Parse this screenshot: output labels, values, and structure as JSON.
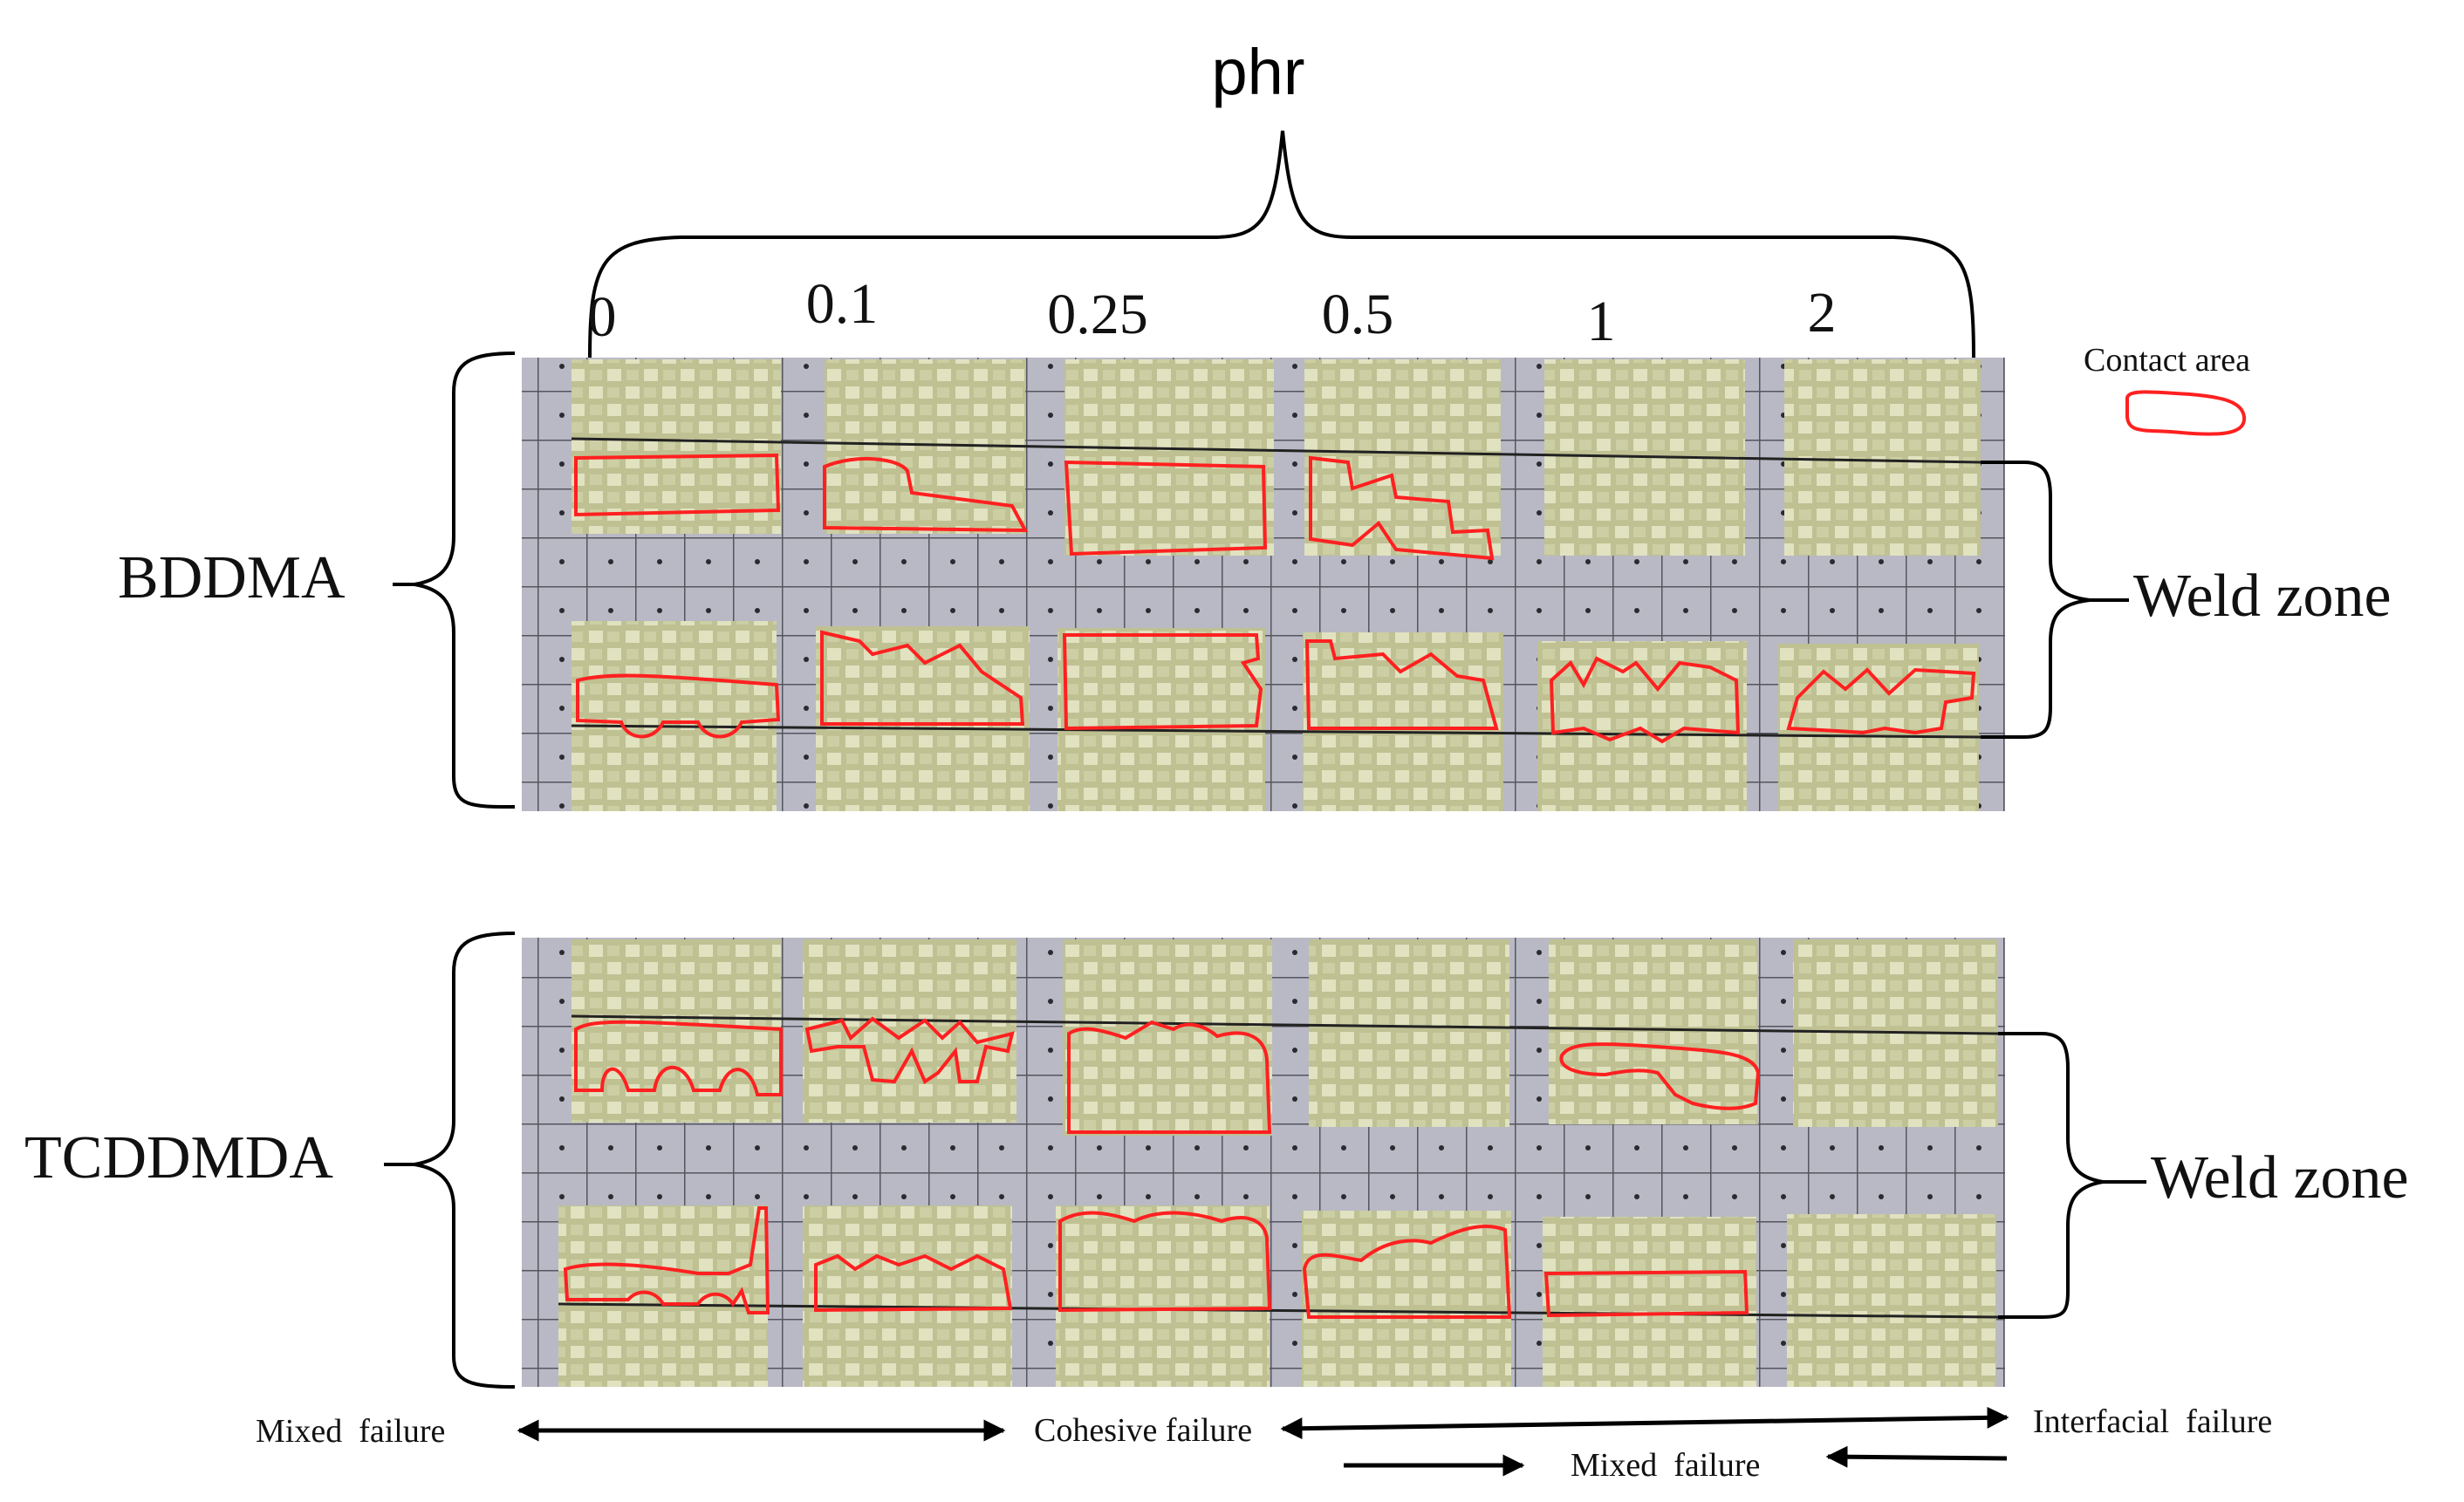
{
  "header": {
    "title": "phr"
  },
  "concentrations": [
    "0",
    "0.1",
    "0.25",
    "0.5",
    "1",
    "2"
  ],
  "rows": [
    {
      "label": "BDDMA",
      "zone_label": "Weld zone"
    },
    {
      "label": "TCDDMDA",
      "zone_label": "Weld zone"
    }
  ],
  "legend": {
    "label": "Contact area",
    "color": "#ff2020"
  },
  "failure_modes": {
    "mixed_left": "Mixed  failure",
    "cohesive": "Cohesive failure",
    "interfacial": "Interfacial  failure",
    "mixed_right": "Mixed  failure"
  },
  "contact_samples": {
    "bddma_top": [
      true,
      true,
      true,
      true,
      false,
      false
    ],
    "bddma_bottom": [
      true,
      true,
      true,
      true,
      true,
      true
    ],
    "tcddmda_top": [
      true,
      true,
      true,
      false,
      true,
      false
    ],
    "tcddmda_bottom": [
      true,
      true,
      true,
      true,
      true,
      false
    ]
  },
  "colors": {
    "sample": "#c5c79a",
    "sample_light": "#e6e6c4",
    "grid_bg": "#b8b8c4",
    "grid_line": "#5b5b68",
    "outline": "#ff2020"
  }
}
